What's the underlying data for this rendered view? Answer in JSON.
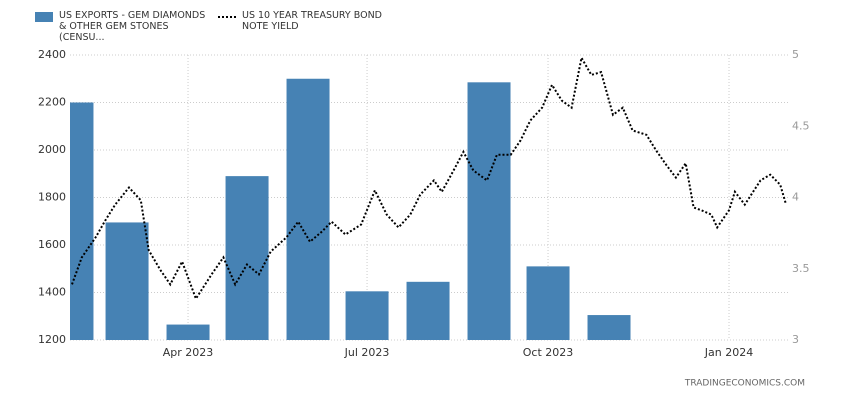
{
  "chart_data": {
    "type": "bar-line",
    "source": "TRADINGECONOMICS.COM",
    "xlim": [
      "2023-01-31",
      "2024-02-01"
    ],
    "xticks": [
      {
        "value": "2023-04-01",
        "label": "Apr 2023"
      },
      {
        "value": "2023-07-01",
        "label": "Jul 2023"
      },
      {
        "value": "2023-10-01",
        "label": "Oct 2023"
      },
      {
        "value": "2024-01-01",
        "label": "Jan 2024"
      }
    ],
    "ylim": [
      1200,
      2400
    ],
    "yticks": [
      1200,
      1400,
      1600,
      1800,
      2000,
      2200,
      2400
    ],
    "y2lim": [
      3,
      5
    ],
    "y2ticks": [
      3,
      3.5,
      4,
      4.5,
      5
    ],
    "grid": true,
    "series": [
      {
        "name": "US EXPORTS - GEM DIAMONDS & OTHER GEM STONES (CENSU...",
        "type": "bar",
        "color": "#4682b4",
        "x": [
          "2023-02",
          "2023-03",
          "2023-04",
          "2023-05",
          "2023-06",
          "2023-07",
          "2023-08",
          "2023-09",
          "2023-10",
          "2023-11"
        ],
        "values": [
          2200,
          1695,
          1265,
          1890,
          2300,
          1405,
          1445,
          2285,
          1510,
          1305
        ]
      },
      {
        "name": "US 10 YEAR TREASURY BOND NOTE YIELD",
        "type": "line",
        "color": "#000000",
        "axis": "y2",
        "x": [
          "2023-02-01",
          "2023-02-06",
          "2023-02-13",
          "2023-02-18",
          "2023-02-23",
          "2023-03-02",
          "2023-03-08",
          "2023-03-12",
          "2023-03-18",
          "2023-03-23",
          "2023-03-29",
          "2023-04-05",
          "2023-04-13",
          "2023-04-19",
          "2023-04-25",
          "2023-05-01",
          "2023-05-07",
          "2023-05-13",
          "2023-05-21",
          "2023-05-27",
          "2023-06-02",
          "2023-06-08",
          "2023-06-13",
          "2023-06-20",
          "2023-06-28",
          "2023-07-05",
          "2023-07-11",
          "2023-07-17",
          "2023-07-23",
          "2023-07-28",
          "2023-08-04",
          "2023-08-08",
          "2023-08-14",
          "2023-08-19",
          "2023-08-24",
          "2023-08-31",
          "2023-09-05",
          "2023-09-12",
          "2023-09-17",
          "2023-09-22",
          "2023-09-28",
          "2023-10-03",
          "2023-10-08",
          "2023-10-13",
          "2023-10-18",
          "2023-10-23",
          "2023-10-28",
          "2023-11-03",
          "2023-11-08",
          "2023-11-13",
          "2023-11-20",
          "2023-11-25",
          "2023-11-30",
          "2023-12-05",
          "2023-12-10",
          "2023-12-14",
          "2023-12-18",
          "2023-12-23",
          "2023-12-26",
          "2024-01-01",
          "2024-01-04",
          "2024-01-09",
          "2024-01-17",
          "2024-01-22",
          "2024-01-27",
          "2024-01-30"
        ],
        "values": [
          3.39,
          3.58,
          3.72,
          3.84,
          3.95,
          4.07,
          3.98,
          3.63,
          3.49,
          3.39,
          3.55,
          3.29,
          3.46,
          3.58,
          3.39,
          3.53,
          3.46,
          3.62,
          3.72,
          3.83,
          3.69,
          3.76,
          3.83,
          3.74,
          3.81,
          4.05,
          3.88,
          3.79,
          3.88,
          4.02,
          4.12,
          4.04,
          4.19,
          4.32,
          4.19,
          4.12,
          4.3,
          4.3,
          4.4,
          4.54,
          4.63,
          4.79,
          4.68,
          4.63,
          4.98,
          4.86,
          4.88,
          4.58,
          4.63,
          4.47,
          4.44,
          4.33,
          4.23,
          4.14,
          4.24,
          3.93,
          3.91,
          3.88,
          3.79,
          3.91,
          4.04,
          3.95,
          4.12,
          4.16,
          4.09,
          3.95
        ]
      }
    ]
  }
}
